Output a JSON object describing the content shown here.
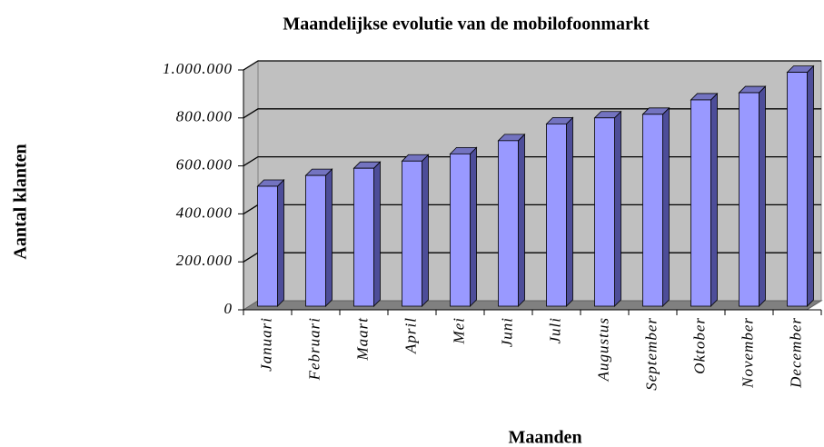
{
  "chart_data": {
    "type": "bar",
    "title": "Maandelijkse evolutie van de mobilofoonmarkt",
    "x_label": "Maanden",
    "y_label": "Aantal klanten",
    "categories": [
      "Januari",
      "Februari",
      "Maart",
      "April",
      "Mei",
      "Juni",
      "Juli",
      "Augustus",
      "September",
      "Oktober",
      "November",
      "December"
    ],
    "values": [
      500000,
      545000,
      575000,
      605000,
      635000,
      690000,
      760000,
      785000,
      800000,
      860000,
      890000,
      975000
    ],
    "color": "#9999ff",
    "ylim": [
      0,
      1000000
    ],
    "yticks": [
      0,
      {
        "value": 200000,
        "label": "200.000"
      },
      {
        "value": 400000,
        "label": "400.000"
      },
      {
        "value": 600000,
        "label": "600.000"
      },
      {
        "value": 800000,
        "label": "800.000"
      },
      {
        "value": 1000000,
        "label": "1.000.000"
      }
    ],
    "grid": true
  }
}
